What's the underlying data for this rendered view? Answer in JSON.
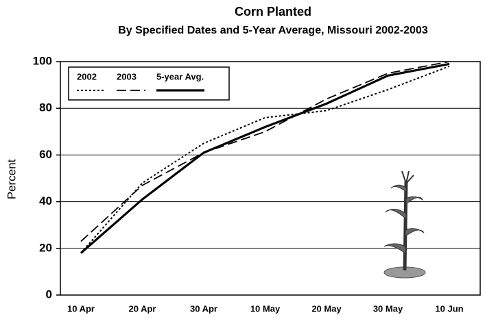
{
  "chart_data": {
    "type": "line",
    "title": "Corn Planted",
    "subtitle": "By Specified Dates and 5-Year Average, Missouri 2002-2003",
    "y_label": "Percent",
    "categories": [
      "10 Apr",
      "20 Apr",
      "30 Apr",
      "10 May",
      "20 May",
      "30 May",
      "10 Jun"
    ],
    "series": [
      {
        "name": "2002",
        "color": "#000000",
        "dash": "dotted",
        "values": [
          18,
          48,
          65,
          76,
          79,
          88,
          98
        ]
      },
      {
        "name": "2003",
        "color": "#000000",
        "dash": "dashed",
        "values": [
          23,
          47,
          61,
          70,
          84,
          95,
          100
        ]
      },
      {
        "name": "5-year Avg.",
        "color": "#000000",
        "dash": "solid",
        "values": [
          18,
          41,
          61,
          72,
          82,
          94,
          99
        ]
      }
    ],
    "ylim": [
      0,
      100
    ],
    "yticks": [
      0,
      20,
      40,
      60,
      80,
      100
    ],
    "grid": true,
    "legend": "upper left"
  }
}
